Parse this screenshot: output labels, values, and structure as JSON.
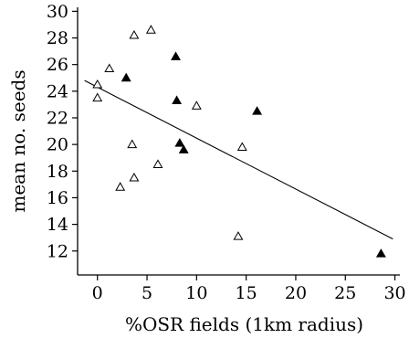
{
  "chart_data": {
    "type": "scatter",
    "title": "",
    "xlabel": "%OSR fields (1km radius)",
    "ylabel": "mean no. seeds",
    "xlim": [
      -2,
      30.5
    ],
    "ylim": [
      10.2,
      30.3
    ],
    "x_ticks": [
      0,
      5,
      10,
      15,
      20,
      25,
      30
    ],
    "y_ticks": [
      12,
      14,
      16,
      18,
      20,
      22,
      24,
      26,
      28,
      30
    ],
    "grid": false,
    "legend": "none",
    "series": [
      {
        "marker": "open-triangle",
        "color": "#000000",
        "points": [
          {
            "x": 0.0,
            "y": 24.5
          },
          {
            "x": 0.0,
            "y": 23.5
          },
          {
            "x": 1.2,
            "y": 25.7
          },
          {
            "x": 2.3,
            "y": 16.8
          },
          {
            "x": 3.5,
            "y": 20.0
          },
          {
            "x": 3.7,
            "y": 28.2
          },
          {
            "x": 3.7,
            "y": 17.5
          },
          {
            "x": 5.4,
            "y": 28.6
          },
          {
            "x": 6.1,
            "y": 18.5
          },
          {
            "x": 10.0,
            "y": 22.9
          },
          {
            "x": 14.2,
            "y": 13.1
          },
          {
            "x": 14.6,
            "y": 19.8
          }
        ]
      },
      {
        "marker": "filled-triangle",
        "color": "#000000",
        "points": [
          {
            "x": 2.9,
            "y": 25.0
          },
          {
            "x": 7.9,
            "y": 26.6
          },
          {
            "x": 8.0,
            "y": 23.3
          },
          {
            "x": 8.3,
            "y": 20.1
          },
          {
            "x": 8.7,
            "y": 19.6
          },
          {
            "x": 16.1,
            "y": 22.5
          },
          {
            "x": 28.6,
            "y": 11.8
          }
        ]
      }
    ],
    "fit_line": {
      "x": [
        -1.3,
        29.8
      ],
      "y": [
        24.8,
        12.9
      ]
    }
  }
}
